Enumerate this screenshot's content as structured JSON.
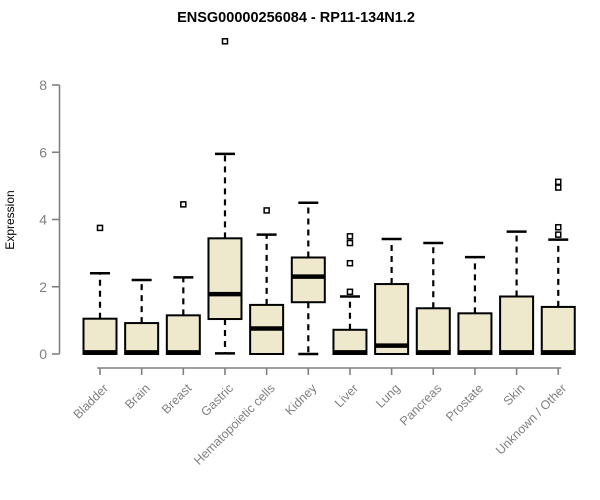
{
  "chart_data": {
    "type": "boxplot",
    "title": "ENSG00000256084 - RP11-134N1.2",
    "ylabel": "Expression",
    "xlabel": "",
    "ylim": [
      0,
      9.5
    ],
    "yticks": [
      0,
      2,
      4,
      6,
      8
    ],
    "grid": false,
    "legend": "none",
    "categories": [
      "Bladder",
      "Brain",
      "Breast",
      "Gastric",
      "Hematopoietic cells",
      "Kidney",
      "Liver",
      "Lung",
      "Pancreas",
      "Prostate",
      "Skin",
      "Unknown / Other"
    ],
    "boxes": [
      {
        "category": "Bladder",
        "whisker_low": 0,
        "q1": 0,
        "median": 0.05,
        "q3": 1.05,
        "whisker_high": 2.4,
        "outliers": [
          3.75
        ]
      },
      {
        "category": "Brain",
        "whisker_low": 0,
        "q1": 0,
        "median": 0.05,
        "q3": 0.92,
        "whisker_high": 2.2,
        "outliers": []
      },
      {
        "category": "Breast",
        "whisker_low": 0,
        "q1": 0,
        "median": 0.05,
        "q3": 1.15,
        "whisker_high": 2.28,
        "outliers": [
          4.45
        ]
      },
      {
        "category": "Gastric",
        "whisker_low": 0.02,
        "q1": 1.04,
        "median": 1.78,
        "q3": 3.44,
        "whisker_high": 5.95,
        "outliers": [
          9.3
        ]
      },
      {
        "category": "Hematopoietic cells",
        "whisker_low": 0,
        "q1": 0,
        "median": 0.76,
        "q3": 1.46,
        "whisker_high": 3.55,
        "outliers": [
          4.27
        ]
      },
      {
        "category": "Kidney",
        "whisker_low": 0,
        "q1": 1.54,
        "median": 2.3,
        "q3": 2.87,
        "whisker_high": 4.5,
        "outliers": []
      },
      {
        "category": "Liver",
        "whisker_low": 0,
        "q1": 0,
        "median": 0.05,
        "q3": 0.72,
        "whisker_high": 1.71,
        "outliers": [
          1.85,
          2.7,
          3.3,
          3.5
        ]
      },
      {
        "category": "Lung",
        "whisker_low": 0,
        "q1": 0,
        "median": 0.25,
        "q3": 2.08,
        "whisker_high": 3.42,
        "outliers": []
      },
      {
        "category": "Pancreas",
        "whisker_low": 0,
        "q1": 0,
        "median": 0.05,
        "q3": 1.36,
        "whisker_high": 3.3,
        "outliers": []
      },
      {
        "category": "Prostate",
        "whisker_low": 0,
        "q1": 0,
        "median": 0.05,
        "q3": 1.21,
        "whisker_high": 2.88,
        "outliers": []
      },
      {
        "category": "Skin",
        "whisker_low": 0,
        "q1": 0,
        "median": 0.05,
        "q3": 1.71,
        "whisker_high": 3.64,
        "outliers": []
      },
      {
        "category": "Unknown / Other",
        "whisker_low": 0,
        "q1": 0,
        "median": 0.05,
        "q3": 1.4,
        "whisker_high": 3.4,
        "outliers": [
          3.55,
          3.77,
          4.95,
          5.12
        ]
      }
    ],
    "colors": {
      "box_fill": "#EEE8CD",
      "box_border": "#000000",
      "median": "#000000",
      "whisker": "#000000",
      "outlier_stroke": "#000000",
      "outlier_fill": "#FFFFFF",
      "axis": "#808080",
      "tick_label": "#808080",
      "category_label": "#808080",
      "title": "#000000",
      "background": "#FFFFFF"
    }
  }
}
